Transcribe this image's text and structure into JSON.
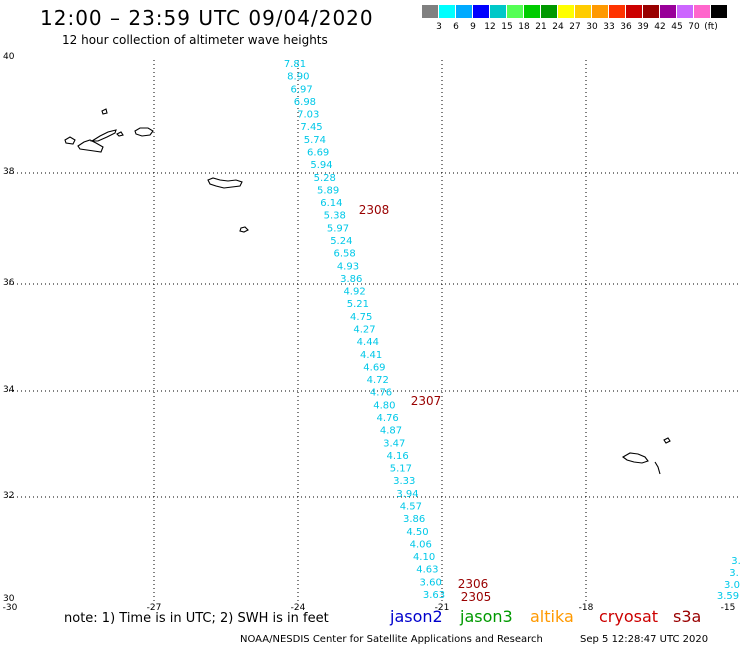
{
  "header": {
    "title": "12:00 – 23:59 UTC 09/04/2020",
    "subtitle": "12 hour collection of altimeter wave heights"
  },
  "legend": {
    "colors": [
      "#808080",
      "#00ffff",
      "#00aaff",
      "#0000ff",
      "#00c8c8",
      "#55ff55",
      "#00cc00",
      "#009900",
      "#ffff00",
      "#ffcc00",
      "#ff9900",
      "#ff3300",
      "#cc0000",
      "#990000",
      "#990099",
      "#cc66ff",
      "#ff66cc",
      "#000000"
    ],
    "labels": [
      "3",
      "6",
      "9",
      "12",
      "15",
      "18",
      "21",
      "24",
      "27",
      "30",
      "33",
      "36",
      "39",
      "42",
      "45",
      "70",
      "(ft)"
    ]
  },
  "axes": {
    "y_labels": [
      "40",
      "38",
      "36",
      "34",
      "32",
      "30"
    ],
    "x_labels": [
      "-30",
      "-27",
      "-24",
      "-21",
      "-18",
      "-15"
    ]
  },
  "track": {
    "color": "#00c8e8",
    "values": [
      "7.81",
      "8.90",
      "6.97",
      "6.98",
      "7.03",
      "7.45",
      "5.74",
      "6.69",
      "5.94",
      "5.28",
      "5.89",
      "6.14",
      "5.38",
      "5.97",
      "5.24",
      "6.58",
      "4.93",
      "3.86",
      "4.92",
      "5.21",
      "4.75",
      "4.27",
      "4.44",
      "4.41",
      "4.69",
      "4.72",
      "4.76",
      "4.80",
      "4.76",
      "4.87",
      "3.47",
      "4.16",
      "5.17",
      "3.33",
      "3.94",
      "4.57",
      "3.86",
      "4.50",
      "4.06",
      "4.10",
      "4.63",
      "3.60",
      "3.63"
    ]
  },
  "edge_track": {
    "values": [
      "3.",
      "3.",
      "3.0",
      "3.59"
    ]
  },
  "times": [
    "2308",
    "2307",
    "2306",
    "2305"
  ],
  "note": "note: 1) Time is in UTC; 2) SWH is in feet",
  "satellites": [
    {
      "name": "jason2",
      "color": "#0000cc"
    },
    {
      "name": "jason3",
      "color": "#009900"
    },
    {
      "name": "altika",
      "color": "#ff9900"
    },
    {
      "name": "cryosat",
      "color": "#cc0000"
    },
    {
      "name": "s3a",
      "color": "#990000"
    }
  ],
  "footer": {
    "credit": "NOAA/NESDIS Center for Satellite Applications and Research",
    "timestamp": "Sep  5 12:28:47 UTC 2020"
  }
}
